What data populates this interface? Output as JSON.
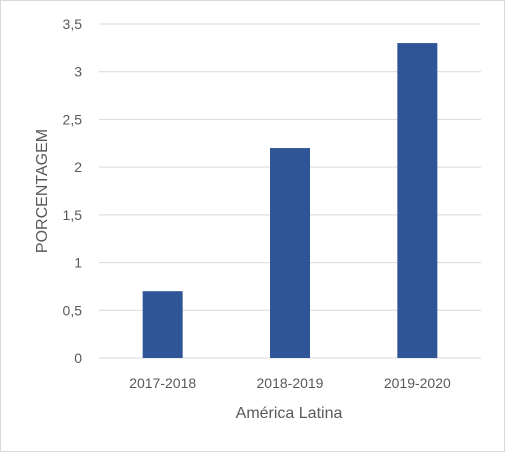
{
  "chart_data": {
    "type": "bar",
    "categories": [
      "2017-2018",
      "2018-2019",
      "2019-2020"
    ],
    "values": [
      0.7,
      2.2,
      3.3
    ],
    "title": "",
    "xlabel": "América Latina",
    "ylabel": "PORCENTAGEM",
    "ylim": [
      0,
      3.5
    ],
    "yticks": [
      "0",
      "0,5",
      "1",
      "1,5",
      "2",
      "2,5",
      "3",
      "3,5"
    ],
    "grid": true,
    "legend": "none",
    "bar_color": "#2f5597",
    "grid_color": "#d9d9d9",
    "text_color": "#595959"
  }
}
